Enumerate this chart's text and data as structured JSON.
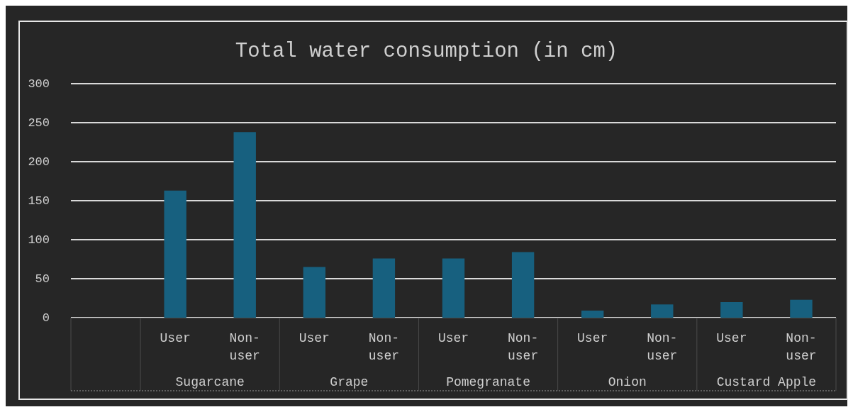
{
  "chart_data": {
    "type": "bar",
    "title": "Total water consumption (in cm)",
    "categories": [
      null,
      "User",
      "Non-user",
      "User",
      "Non-user",
      "User",
      "Non-user",
      "User",
      "Non-user",
      "User",
      "Non-user"
    ],
    "values": [
      null,
      163,
      238,
      65,
      76,
      76,
      84,
      9,
      17,
      20,
      23
    ],
    "color": "#17607f",
    "annotations": [
      "Sugarcane",
      "Grape",
      "Pomegranate",
      "Onion",
      "Custard Apple"
    ],
    "ylim": [
      0,
      300
    ],
    "yticks": [
      0,
      50,
      100,
      150,
      200,
      250,
      300
    ],
    "grid": "y"
  }
}
